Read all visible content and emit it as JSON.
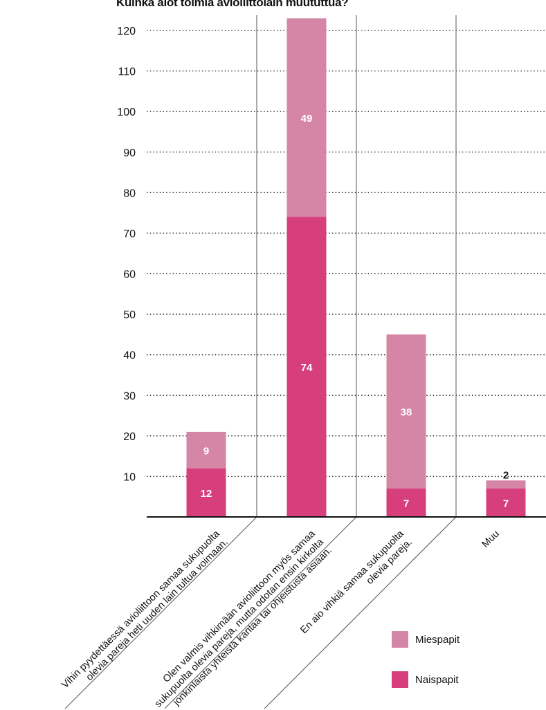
{
  "chart_data": {
    "type": "bar",
    "stacked": true,
    "title": "Kuinka aiot toimia avioliittolain muututtua?",
    "categories": [
      [
        "Vihin pyydettäessä avioliittoon samaa sukupuolta",
        "olevia pareja heti uuden lain tultua voimaan."
      ],
      [
        "Olen valmis vihkimään avioliittoon myös samaa",
        "sukupuolta olevia pareja, mutta odotan ensin kirkolta",
        "jonkinlaista yhteistä kantaa tai ohjeistusta asiaan."
      ],
      [
        "En aio vihkiä samaa sukupuolta",
        "olevia pareja."
      ],
      [
        "Muu"
      ]
    ],
    "series": [
      {
        "name": "Naispapit",
        "color": "#d63f7b",
        "values": [
          12,
          74,
          7,
          7
        ]
      },
      {
        "name": "Miespapit",
        "color": "#d585a6",
        "values": [
          9,
          49,
          38,
          2
        ]
      }
    ],
    "ylim": [
      0,
      120
    ],
    "yticks": [
      10,
      20,
      30,
      40,
      50,
      60,
      70,
      80,
      90,
      100,
      110,
      120
    ],
    "grid": true,
    "legend_position": "bottom-right"
  },
  "legend": {
    "items": [
      {
        "label": "Miespapit",
        "color": "#d585a6"
      },
      {
        "label": "Naispapit",
        "color": "#d63f7b"
      }
    ]
  }
}
